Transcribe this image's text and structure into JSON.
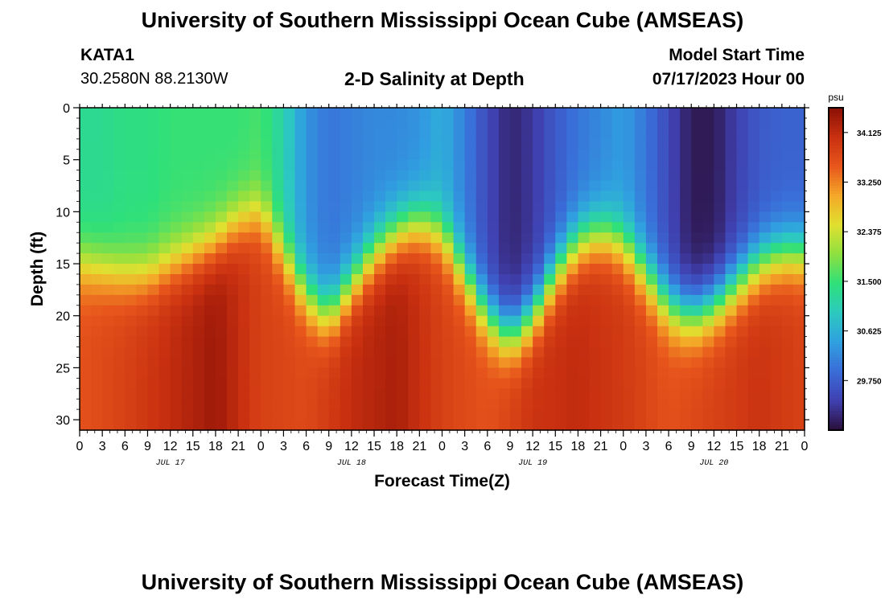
{
  "header": {
    "title": "University of Southern Mississippi Ocean Cube (AMSEAS)",
    "station_id": "KATA1",
    "station_coords": "30.2580N  88.2130W",
    "plot_title": "2-D Salinity at Depth",
    "model_start_label": "Model Start Time",
    "model_start_value": "07/17/2023 Hour 00"
  },
  "footer": {
    "title": "University of Southern Mississippi Ocean Cube (AMSEAS)"
  },
  "colors": {
    "colormap": [
      "#2b0f3b",
      "#4040b0",
      "#3a6cd8",
      "#30a0e0",
      "#2cc9c0",
      "#2ee07a",
      "#8ee040",
      "#e0e030",
      "#f4a828",
      "#e8561c",
      "#c83010",
      "#8a0f06"
    ],
    "background": "#ffffff",
    "axis": "#000000"
  },
  "chart_data": {
    "type": "heatmap",
    "title": "2-D Salinity at Depth",
    "xlabel": "Forecast Time(Z)",
    "ylabel": "Depth (ft)",
    "x_hours_range": [
      0,
      96
    ],
    "ylim": [
      0,
      31
    ],
    "y_inverted": true,
    "x_tick_labels": [
      "0",
      "3",
      "6",
      "9",
      "12",
      "15",
      "18",
      "21",
      "0",
      "3",
      "6",
      "9",
      "12",
      "15",
      "18",
      "21",
      "0",
      "3",
      "6",
      "9",
      "12",
      "15",
      "18",
      "21",
      "0",
      "3",
      "6",
      "9",
      "12",
      "15",
      "18",
      "21",
      "0"
    ],
    "y_ticks": [
      0,
      5,
      10,
      15,
      20,
      25,
      30
    ],
    "date_labels": [
      {
        "hour": 12,
        "label": "JUL 17"
      },
      {
        "hour": 36,
        "label": "JUL 18"
      },
      {
        "hour": 60,
        "label": "JUL 19"
      },
      {
        "hour": 84,
        "label": "JUL 20"
      }
    ],
    "colorbar": {
      "unit": "psu",
      "range": [
        28.875,
        34.562
      ],
      "tick_values": [
        34.125,
        33.25,
        32.375,
        31.5,
        30.625,
        29.75
      ],
      "tick_labels": [
        "34.125",
        "33.250",
        "32.375",
        "31.500",
        "30.625",
        "29.750"
      ]
    },
    "halocline_depth_ft": {
      "hours": [
        0,
        3,
        6,
        9,
        12,
        15,
        18,
        21,
        24,
        27,
        30,
        33,
        36,
        39,
        42,
        45,
        48,
        51,
        54,
        57,
        60,
        63,
        66,
        69,
        72,
        75,
        78,
        81,
        84,
        87,
        90,
        93,
        96
      ],
      "values": [
        15,
        15.5,
        16,
        16,
        15,
        14,
        13,
        11,
        10,
        14,
        18,
        20,
        17,
        14,
        12,
        11,
        12,
        16,
        20,
        22,
        20,
        16,
        13,
        12,
        13,
        16,
        19,
        20,
        19,
        17,
        15,
        14,
        14
      ]
    },
    "surface_salinity_psu": {
      "hours": [
        0,
        3,
        6,
        9,
        12,
        15,
        18,
        21,
        24,
        27,
        30,
        33,
        36,
        39,
        42,
        45,
        48,
        51,
        54,
        57,
        60,
        63,
        66,
        69,
        72,
        75,
        78,
        81,
        84,
        87,
        90,
        93,
        96
      ],
      "values": [
        31.3,
        31.3,
        31.4,
        31.4,
        31.5,
        31.5,
        31.5,
        31.5,
        31.6,
        31.1,
        30.3,
        30.0,
        30.1,
        30.2,
        30.2,
        30.3,
        30.6,
        30.1,
        29.5,
        29.1,
        29.3,
        29.7,
        30.0,
        30.2,
        30.4,
        30.0,
        29.5,
        29.0,
        29.0,
        29.4,
        29.7,
        29.8,
        29.8
      ]
    },
    "bottom_salinity_psu": {
      "hours": [
        0,
        6,
        12,
        18,
        24,
        30,
        36,
        42,
        48,
        54,
        60,
        66,
        72,
        78,
        84,
        90,
        96
      ],
      "values": [
        33.6,
        33.8,
        34.1,
        34.4,
        33.8,
        33.7,
        34.1,
        34.3,
        33.8,
        33.6,
        34.0,
        34.1,
        33.9,
        33.6,
        33.8,
        34.0,
        33.8
      ]
    }
  }
}
